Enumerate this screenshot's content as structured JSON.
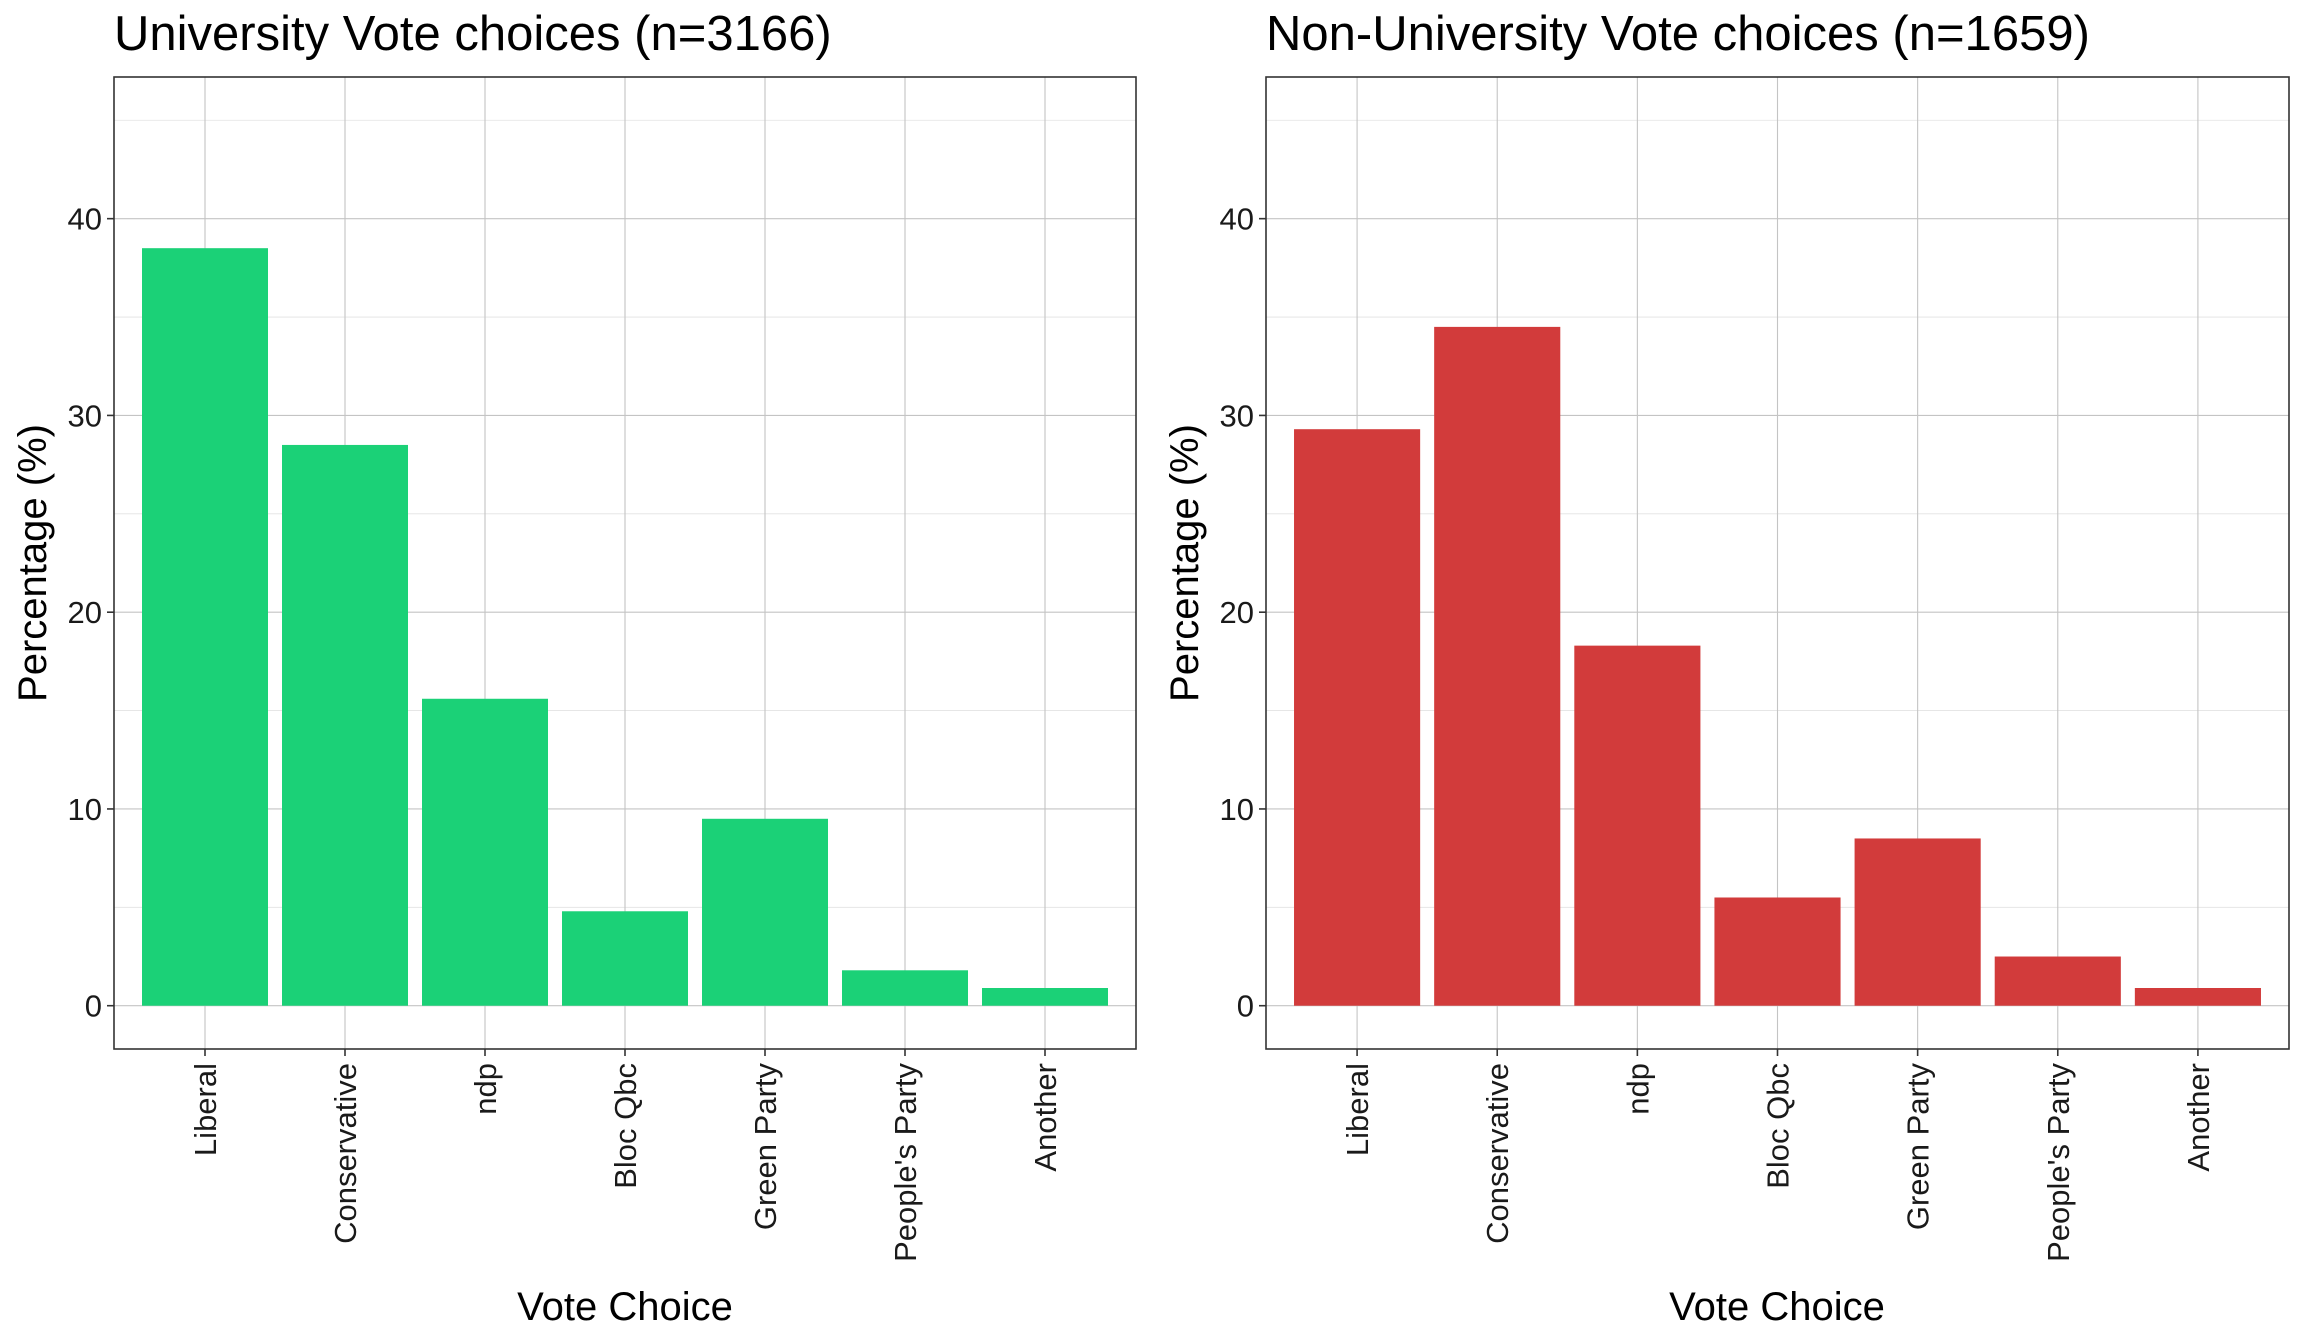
{
  "chart_data": [
    {
      "type": "bar",
      "title": "University Vote choices (n=3166)",
      "xlabel": "Vote Choice",
      "ylabel": "Percentage (%)",
      "categories": [
        "Liberal",
        "Conservative",
        "ndp",
        "Bloc Qbc",
        "Green Party",
        "People's Party",
        "Another"
      ],
      "values": [
        38.5,
        28.5,
        15.6,
        4.8,
        9.5,
        1.8,
        0.9
      ],
      "yticks": [
        0,
        10,
        20,
        30,
        40
      ],
      "ytick_labels": [
        "0",
        "10",
        "20",
        "30",
        "40"
      ],
      "ylim": [
        -2.2,
        47.2
      ],
      "grid": true,
      "bar_color": "#1bd177"
    },
    {
      "type": "bar",
      "title": "Non-University Vote choices (n=1659)",
      "xlabel": "Vote Choice",
      "ylabel": "Percentage (%)",
      "categories": [
        "Liberal",
        "Conservative",
        "ndp",
        "Bloc Qbc",
        "Green Party",
        "People's Party",
        "Another"
      ],
      "values": [
        29.3,
        34.5,
        18.3,
        5.5,
        8.5,
        2.5,
        0.9
      ],
      "yticks": [
        0,
        10,
        20,
        30,
        40
      ],
      "ytick_labels": [
        "0",
        "10",
        "20",
        "30",
        "40"
      ],
      "ylim": [
        -2.2,
        47.2
      ],
      "grid": true,
      "bar_color": "#d23b3b"
    }
  ]
}
